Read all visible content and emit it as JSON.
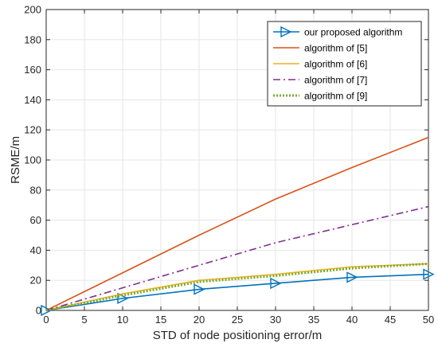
{
  "chart_data": {
    "type": "line",
    "xlabel": "STD of node positioning error/m",
    "ylabel": "RSME/m",
    "xlim": [
      0,
      50
    ],
    "ylim": [
      0,
      200
    ],
    "xticks": [
      0,
      5,
      10,
      15,
      20,
      25,
      30,
      35,
      40,
      45,
      50
    ],
    "yticks": [
      0,
      20,
      40,
      60,
      80,
      100,
      120,
      140,
      160,
      180,
      200
    ],
    "grid": true,
    "legend_position": "top-right",
    "series": [
      {
        "name": "our proposed algorithm",
        "color": "#0072BD",
        "dash": "solid",
        "marker": "triangle-right",
        "x": [
          0,
          10,
          20,
          30,
          40,
          50
        ],
        "y": [
          0,
          8,
          14,
          18,
          22,
          24
        ]
      },
      {
        "name": "algorithm of [5]",
        "color": "#D95319",
        "dash": "solid",
        "marker": "none",
        "x": [
          0,
          10,
          20,
          30,
          40,
          50
        ],
        "y": [
          0,
          25,
          50,
          74,
          95,
          115
        ]
      },
      {
        "name": "algorithm of [6]",
        "color": "#EDB120",
        "dash": "solid",
        "marker": "none",
        "x": [
          0,
          10,
          20,
          30,
          40,
          50
        ],
        "y": [
          0,
          11,
          20,
          24,
          29,
          31
        ]
      },
      {
        "name": "algorithm of [7]",
        "color": "#7E2F8E",
        "dash": "dashdot",
        "marker": "none",
        "x": [
          0,
          10,
          20,
          30,
          40,
          50
        ],
        "y": [
          0,
          15,
          30,
          45,
          57,
          69
        ]
      },
      {
        "name": "algorithm of [9]",
        "color": "#77AC30",
        "dash": "dotted",
        "marker": "none",
        "x": [
          0,
          10,
          20,
          30,
          40,
          50
        ],
        "y": [
          0,
          10,
          19,
          23,
          28,
          31
        ]
      }
    ]
  }
}
